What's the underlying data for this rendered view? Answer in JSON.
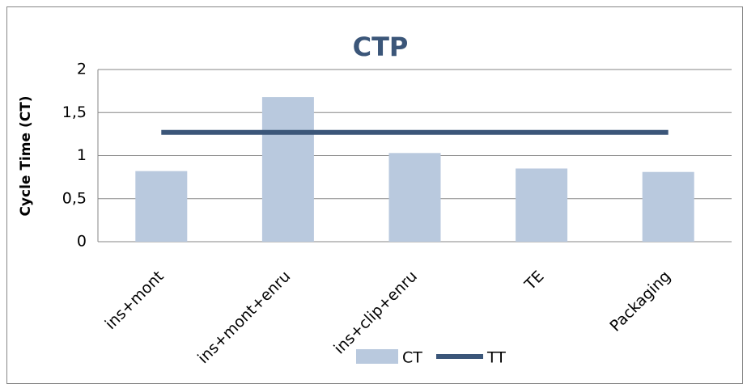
{
  "chart_data": {
    "type": "bar",
    "title": "CTP",
    "y_label": "Cycle Time (CT)",
    "categories": [
      "ins+mont",
      "ins+mont+enru",
      "ins+clip+enru",
      "TE",
      "Packaging"
    ],
    "series": [
      {
        "name": "CT",
        "type": "bar",
        "color": "#b9c9de",
        "values": [
          0.82,
          1.68,
          1.03,
          0.85,
          0.81
        ]
      },
      {
        "name": "TT",
        "type": "line",
        "color": "#3b5679",
        "values": [
          1.27,
          1.27,
          1.27,
          1.27,
          1.27
        ]
      }
    ],
    "ylim": [
      0,
      2
    ],
    "yticks": [
      0,
      {
        "value": 0.5,
        "label": "0,5"
      },
      1,
      {
        "value": 1.5,
        "label": "1,5"
      },
      2
    ],
    "grid": true,
    "legend": "bottom"
  }
}
